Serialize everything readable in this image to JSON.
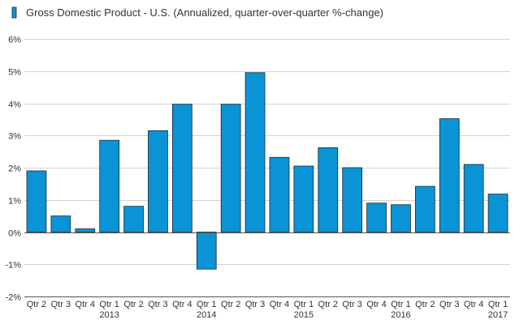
{
  "chart_data": {
    "type": "bar",
    "legend": {
      "label": "Gross Domestic Product - U.S. (Annualized, quarter-over-quarter %-change)",
      "placement": "top-left"
    },
    "categories": [
      "Qtr 2",
      "Qtr 3",
      "Qtr 4",
      "Qtr 1",
      "Qtr 2",
      "Qtr 3",
      "Qtr 4",
      "Qtr 1",
      "Qtr 2",
      "Qtr 3",
      "Qtr 4",
      "Qtr 1",
      "Qtr 2",
      "Qtr 3",
      "Qtr 4",
      "Qtr 1",
      "Qtr 2",
      "Qtr 3",
      "Qtr 4",
      "Qtr 1"
    ],
    "year_labels": [
      {
        "label": "2013",
        "category_index": 3
      },
      {
        "label": "2014",
        "category_index": 7
      },
      {
        "label": "2015",
        "category_index": 11
      },
      {
        "label": "2016",
        "category_index": 15
      },
      {
        "label": "2017",
        "category_index": 19
      }
    ],
    "series": [
      {
        "values": [
          1.9,
          0.5,
          0.1,
          2.85,
          0.8,
          3.15,
          3.97,
          -1.15,
          3.97,
          4.95,
          2.32,
          2.05,
          2.62,
          2.0,
          0.9,
          0.85,
          1.42,
          3.52,
          2.1,
          1.18
        ]
      }
    ],
    "ylim": [
      -2,
      6
    ],
    "yticks": [
      -2,
      -1,
      0,
      1,
      2,
      3,
      4,
      5,
      6
    ],
    "ytick_labels": [
      "-2%",
      "-1%",
      "0%",
      "1%",
      "2%",
      "3%",
      "4%",
      "5%",
      "6%"
    ],
    "grid": true,
    "xlabel": "",
    "ylabel": "",
    "colors": {
      "bar": "#0a94d6",
      "bar_stroke": "#1a2530",
      "grid": "#d3d3d3",
      "axis": "#555555"
    }
  }
}
